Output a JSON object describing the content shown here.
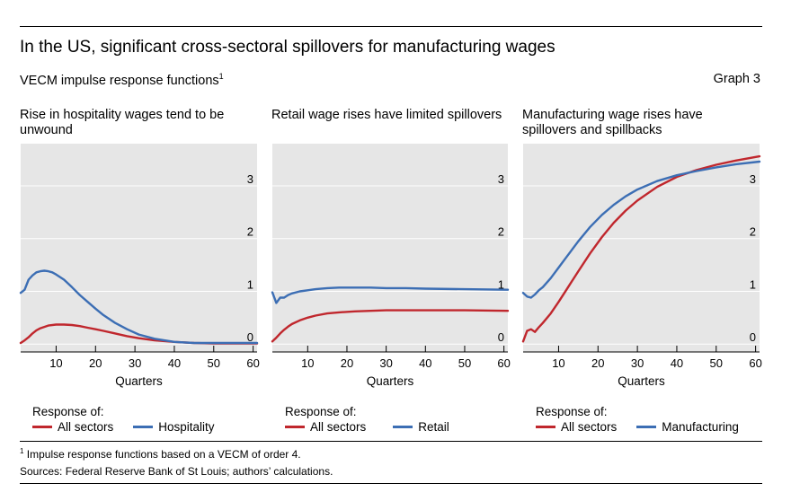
{
  "header": {
    "title": "In the US, significant cross-sectoral spillovers for manufacturing wages",
    "subtitle": "VECM impulse response functions",
    "subtitle_note": "1",
    "graph_label": "Graph 3"
  },
  "footer": {
    "footnote_marker": "1",
    "footnote": "Impulse response functions based on a VECM of order 4.",
    "sources": "Sources: Federal Reserve Bank of St Louis; authors’ calculations."
  },
  "colors": {
    "red": "#c0272d",
    "blue": "#3c6eb4",
    "panel_bg": "#e6e6e6"
  },
  "chart_data": [
    {
      "type": "line",
      "title": "Rise in hospitality wages tend to be unwound",
      "xlabel": "Quarters",
      "xlim": [
        1,
        61
      ],
      "ylim": [
        -0.15,
        3.8
      ],
      "xticks": [
        10,
        20,
        30,
        40,
        50,
        60
      ],
      "yticks": [
        0,
        1,
        2,
        3
      ],
      "grid": true,
      "legend_title": "Response of:",
      "series": [
        {
          "name": "All sectors",
          "color": "#c0272d",
          "x": [
            1,
            2,
            3,
            4,
            5,
            6,
            8,
            10,
            12,
            14,
            16,
            18,
            20,
            22,
            25,
            28,
            31,
            35,
            40,
            45,
            50,
            55,
            61
          ],
          "y": [
            0.02,
            0.07,
            0.13,
            0.2,
            0.26,
            0.3,
            0.35,
            0.37,
            0.37,
            0.36,
            0.34,
            0.31,
            0.28,
            0.25,
            0.2,
            0.15,
            0.11,
            0.07,
            0.04,
            0.02,
            0.01,
            0.01,
            0.01
          ]
        },
        {
          "name": "Hospitality",
          "color": "#3c6eb4",
          "x": [
            1,
            2,
            3,
            4,
            5,
            6,
            7,
            8,
            9,
            10,
            12,
            14,
            16,
            18,
            20,
            22,
            25,
            28,
            31,
            35,
            40,
            45,
            50,
            55,
            61
          ],
          "y": [
            0.97,
            1.03,
            1.22,
            1.3,
            1.36,
            1.38,
            1.39,
            1.38,
            1.36,
            1.32,
            1.22,
            1.08,
            0.93,
            0.8,
            0.67,
            0.55,
            0.4,
            0.28,
            0.18,
            0.1,
            0.04,
            0.02,
            0.02,
            0.02,
            0.02
          ]
        }
      ]
    },
    {
      "type": "line",
      "title": "Retail wage rises have limited spillovers",
      "xlabel": "Quarters",
      "xlim": [
        1,
        61
      ],
      "ylim": [
        -0.15,
        3.8
      ],
      "xticks": [
        10,
        20,
        30,
        40,
        50,
        60
      ],
      "yticks": [
        0,
        1,
        2,
        3
      ],
      "grid": true,
      "legend_title": "Response of:",
      "series": [
        {
          "name": "All sectors",
          "color": "#c0272d",
          "x": [
            1,
            2,
            3,
            4,
            5,
            6,
            8,
            10,
            12,
            15,
            18,
            22,
            26,
            30,
            35,
            40,
            50,
            61
          ],
          "y": [
            0.05,
            0.12,
            0.2,
            0.27,
            0.33,
            0.38,
            0.45,
            0.5,
            0.54,
            0.58,
            0.6,
            0.62,
            0.63,
            0.64,
            0.64,
            0.64,
            0.64,
            0.63
          ]
        },
        {
          "name": "Retail",
          "color": "#3c6eb4",
          "x": [
            1,
            2,
            3,
            4,
            5,
            6,
            8,
            10,
            12,
            15,
            18,
            22,
            26,
            30,
            35,
            40,
            50,
            61
          ],
          "y": [
            0.98,
            0.78,
            0.88,
            0.88,
            0.93,
            0.96,
            1.0,
            1.02,
            1.04,
            1.06,
            1.07,
            1.07,
            1.07,
            1.06,
            1.06,
            1.05,
            1.04,
            1.03
          ]
        }
      ]
    },
    {
      "type": "line",
      "title": "Manufacturing wage rises have spillovers and spillbacks",
      "xlabel": "Quarters",
      "xlim": [
        1,
        61
      ],
      "ylim": [
        -0.15,
        3.8
      ],
      "xticks": [
        10,
        20,
        30,
        40,
        50,
        60
      ],
      "yticks": [
        0,
        1,
        2,
        3
      ],
      "grid": true,
      "legend_title": "Response of:",
      "series": [
        {
          "name": "All sectors",
          "color": "#c0272d",
          "x": [
            1,
            2,
            3,
            4,
            5,
            6,
            8,
            10,
            12,
            15,
            18,
            21,
            24,
            27,
            30,
            35,
            40,
            45,
            50,
            55,
            61
          ],
          "y": [
            0.05,
            0.25,
            0.28,
            0.23,
            0.32,
            0.4,
            0.58,
            0.8,
            1.03,
            1.38,
            1.72,
            2.03,
            2.3,
            2.53,
            2.72,
            2.98,
            3.17,
            3.3,
            3.4,
            3.48,
            3.56
          ]
        },
        {
          "name": "Manufacturing",
          "color": "#3c6eb4",
          "x": [
            1,
            2,
            3,
            4,
            5,
            6,
            8,
            10,
            12,
            15,
            18,
            21,
            24,
            27,
            30,
            35,
            40,
            45,
            50,
            55,
            61
          ],
          "y": [
            0.97,
            0.9,
            0.88,
            0.94,
            1.02,
            1.08,
            1.25,
            1.45,
            1.65,
            1.95,
            2.22,
            2.45,
            2.64,
            2.8,
            2.93,
            3.09,
            3.2,
            3.28,
            3.35,
            3.41,
            3.46
          ]
        }
      ]
    }
  ]
}
